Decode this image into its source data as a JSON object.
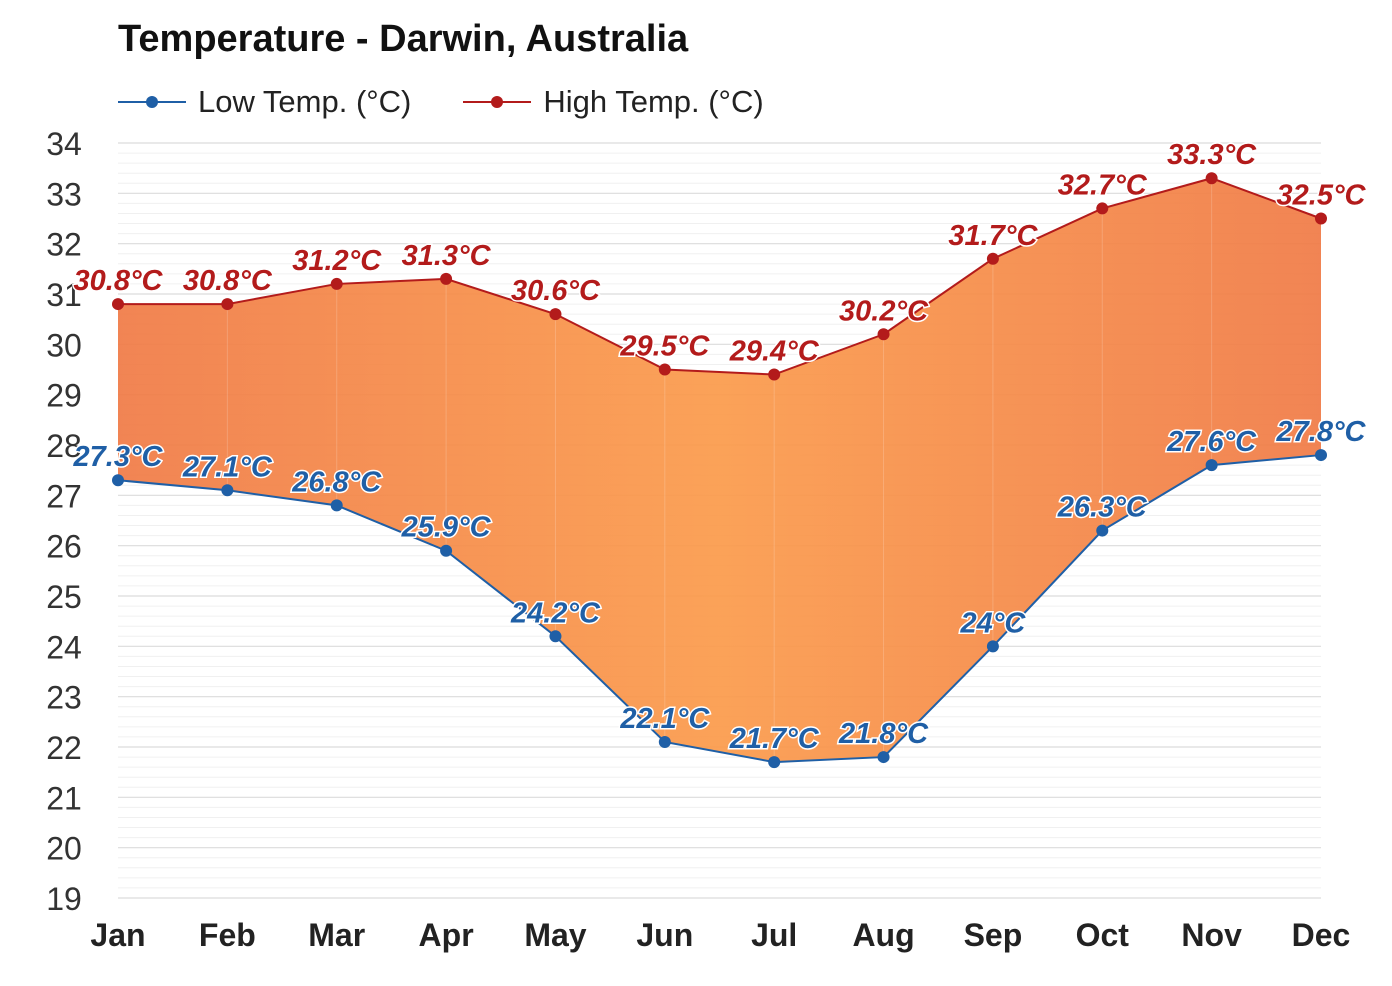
{
  "chart_data": {
    "type": "area",
    "title": "Temperature - Darwin, Australia",
    "categories": [
      "Jan",
      "Feb",
      "Mar",
      "Apr",
      "May",
      "Jun",
      "Jul",
      "Aug",
      "Sep",
      "Oct",
      "Nov",
      "Dec"
    ],
    "series": [
      {
        "name": "Low Temp. (°C)",
        "color": "#1f5fa6",
        "values": [
          27.3,
          27.1,
          26.8,
          25.9,
          24.2,
          22.1,
          21.7,
          21.8,
          24,
          26.3,
          27.6,
          27.8
        ],
        "labels": [
          "27.3°C",
          "27.1°C",
          "26.8°C",
          "25.9°C",
          "24.2°C",
          "22.1°C",
          "21.7°C",
          "21.8°C",
          "24°C",
          "26.3°C",
          "27.6°C",
          "27.8°C"
        ]
      },
      {
        "name": "High Temp. (°C)",
        "color": "#b31b1b",
        "values": [
          30.8,
          30.8,
          31.2,
          31.3,
          30.6,
          29.5,
          29.4,
          30.2,
          31.7,
          32.7,
          33.3,
          32.5
        ],
        "labels": [
          "30.8°C",
          "30.8°C",
          "31.2°C",
          "31.3°C",
          "30.6°C",
          "29.5°C",
          "29.4°C",
          "30.2°C",
          "31.7°C",
          "32.7°C",
          "33.3°C",
          "32.5°C"
        ]
      }
    ],
    "ylim": [
      19,
      34
    ],
    "yticks": [
      "19",
      "20",
      "21",
      "22",
      "23",
      "24",
      "25",
      "26",
      "27",
      "28",
      "29",
      "30",
      "31",
      "32",
      "33",
      "34"
    ],
    "grid": true,
    "legend_position": "top-left",
    "fill_color_light": "#fb9a4a",
    "fill_color_dark": "#f07a45"
  }
}
